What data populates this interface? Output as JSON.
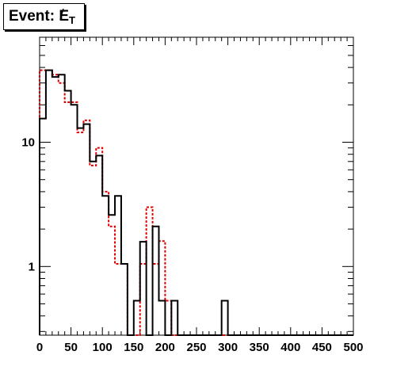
{
  "chart_data": {
    "type": "histogram",
    "title": "Event: E̸T",
    "title_parts": {
      "prefix": "Event: ",
      "symbol": "E",
      "slash": "/",
      "subscript": "T"
    },
    "xlabel": "",
    "ylabel": "",
    "xlim": [
      0,
      500
    ],
    "ylim": [
      0.28,
      70
    ],
    "y_scale": "log",
    "grid": false,
    "legend": "none",
    "x_tick_labels": [
      "0",
      "50",
      "100",
      "150",
      "200",
      "250",
      "300",
      "350",
      "400",
      "450",
      "500"
    ],
    "x_ticks": [
      0,
      50,
      100,
      150,
      200,
      250,
      300,
      350,
      400,
      450,
      500
    ],
    "y_tick_labels": [
      "1",
      "10"
    ],
    "y_ticks": [
      1,
      10
    ],
    "bin_width": 10,
    "bin_edges_start": 0,
    "series": [
      {
        "style": "solid",
        "color": "#000000",
        "values": [
          15.5,
          38,
          33.5,
          35,
          26,
          20,
          13,
          14,
          7,
          7.8,
          3.7,
          2.6,
          3.7,
          1.05,
          0,
          0.53,
          1.58,
          0,
          2.1,
          0.53,
          0,
          0.53,
          0,
          0,
          0,
          0,
          0,
          0,
          0,
          0.53,
          0,
          0,
          0,
          0,
          0,
          0,
          0,
          0,
          0,
          0,
          0,
          0,
          0,
          0,
          0,
          0,
          0,
          0,
          0,
          0
        ]
      },
      {
        "style": "dashed",
        "color": "#dd0000",
        "values": [
          38,
          38,
          35,
          30,
          21,
          21,
          12,
          15,
          6.5,
          9,
          4,
          2.1,
          1.05,
          1.05,
          0,
          0,
          1.05,
          3,
          1.05,
          1.6,
          0.53,
          0,
          0,
          0,
          0,
          0,
          0,
          0,
          0,
          0,
          0,
          0,
          0,
          0,
          0,
          0,
          0,
          0,
          0,
          0,
          0,
          0,
          0,
          0,
          0,
          0,
          0,
          0,
          0,
          0
        ]
      }
    ]
  }
}
